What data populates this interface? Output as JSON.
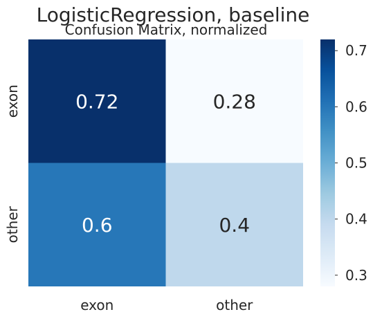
{
  "chart_data": {
    "type": "heatmap",
    "title": "LogisticRegression, baseline",
    "subtitle": "Confusion Matrix, normalized",
    "x_tick_labels": [
      "exon",
      "other"
    ],
    "y_tick_labels": [
      "exon",
      "other"
    ],
    "values": [
      [
        0.72,
        0.28
      ],
      [
        0.6,
        0.4
      ]
    ],
    "cell_labels": [
      [
        "0.72",
        "0.28"
      ],
      [
        "0.6",
        "0.4"
      ]
    ],
    "colormap": "Blues",
    "colorbar": {
      "min": 0.28,
      "max": 0.72,
      "ticks": [
        0.3,
        0.4,
        0.5,
        0.6,
        0.7
      ],
      "tick_labels": [
        "0.3",
        "0.4",
        "0.5",
        "0.6",
        "0.7"
      ]
    },
    "colors": {
      "blues_stops": [
        "#f7fbff",
        "#deebf7",
        "#c6dbef",
        "#9ecae1",
        "#6baed6",
        "#4292c6",
        "#2171b5",
        "#08519c",
        "#08306b"
      ],
      "text_dark": "#262626",
      "text_light": "#ffffff"
    },
    "grid": false
  }
}
